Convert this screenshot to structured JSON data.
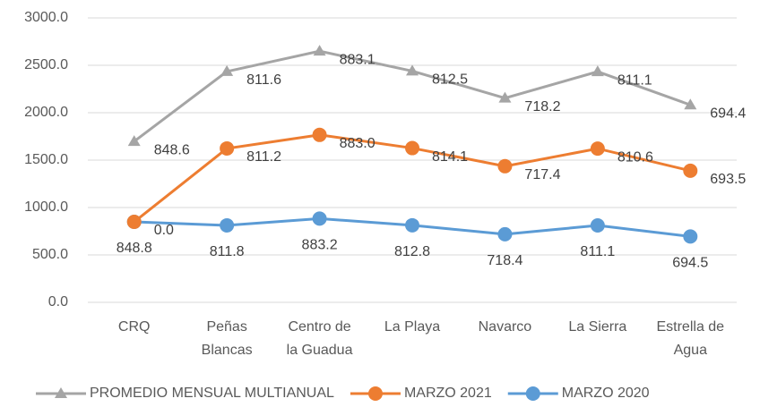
{
  "chart_data": {
    "type": "line",
    "stacked": true,
    "categories": [
      "CRQ",
      "Peñas\nBlancas",
      "Centro de\nla Guadua",
      "La Playa",
      "Navarco",
      "La Sierra",
      "Estrella de\nAgua"
    ],
    "series": [
      {
        "name": "PROMEDIO MENSUAL MULTIANUAL",
        "color": "#a5a5a5",
        "marker": "triangle",
        "values": [
          848.6,
          811.6,
          883.1,
          812.5,
          718.2,
          811.1,
          694.4
        ],
        "value_labels": [
          "848.6",
          "811.6",
          "883.1",
          "812.5",
          "718.2",
          "811.1",
          "694.4"
        ]
      },
      {
        "name": "MARZO 2021",
        "color": "#ed7d31",
        "marker": "circle",
        "values": [
          0,
          811.2,
          883.0,
          814.1,
          717.4,
          810.6,
          693.5
        ],
        "value_labels": [
          "0.0",
          "811.2",
          "883.0",
          "814.1",
          "717.4",
          "810.6",
          "693.5"
        ]
      },
      {
        "name": "MARZO 2020",
        "color": "#5b9bd5",
        "marker": "circle",
        "values": [
          848.8,
          811.8,
          883.2,
          812.8,
          718.4,
          811.1,
          694.5
        ],
        "value_labels": [
          "848.8",
          "811.8",
          "883.2",
          "812.8",
          "718.4",
          "811.1",
          "694.5"
        ]
      }
    ],
    "ylim": [
      0,
      3000
    ],
    "yticks": [
      {
        "value": 0,
        "label": "0.0"
      },
      {
        "value": 500,
        "label": "500.0"
      },
      {
        "value": 1000,
        "label": "1000.0"
      },
      {
        "value": 1500,
        "label": "1500.0"
      },
      {
        "value": 2000,
        "label": "2000.0"
      },
      {
        "value": 2500,
        "label": "2500.0"
      },
      {
        "value": 3000,
        "label": "3000.0"
      }
    ],
    "grid": true,
    "legend": "bottom"
  }
}
